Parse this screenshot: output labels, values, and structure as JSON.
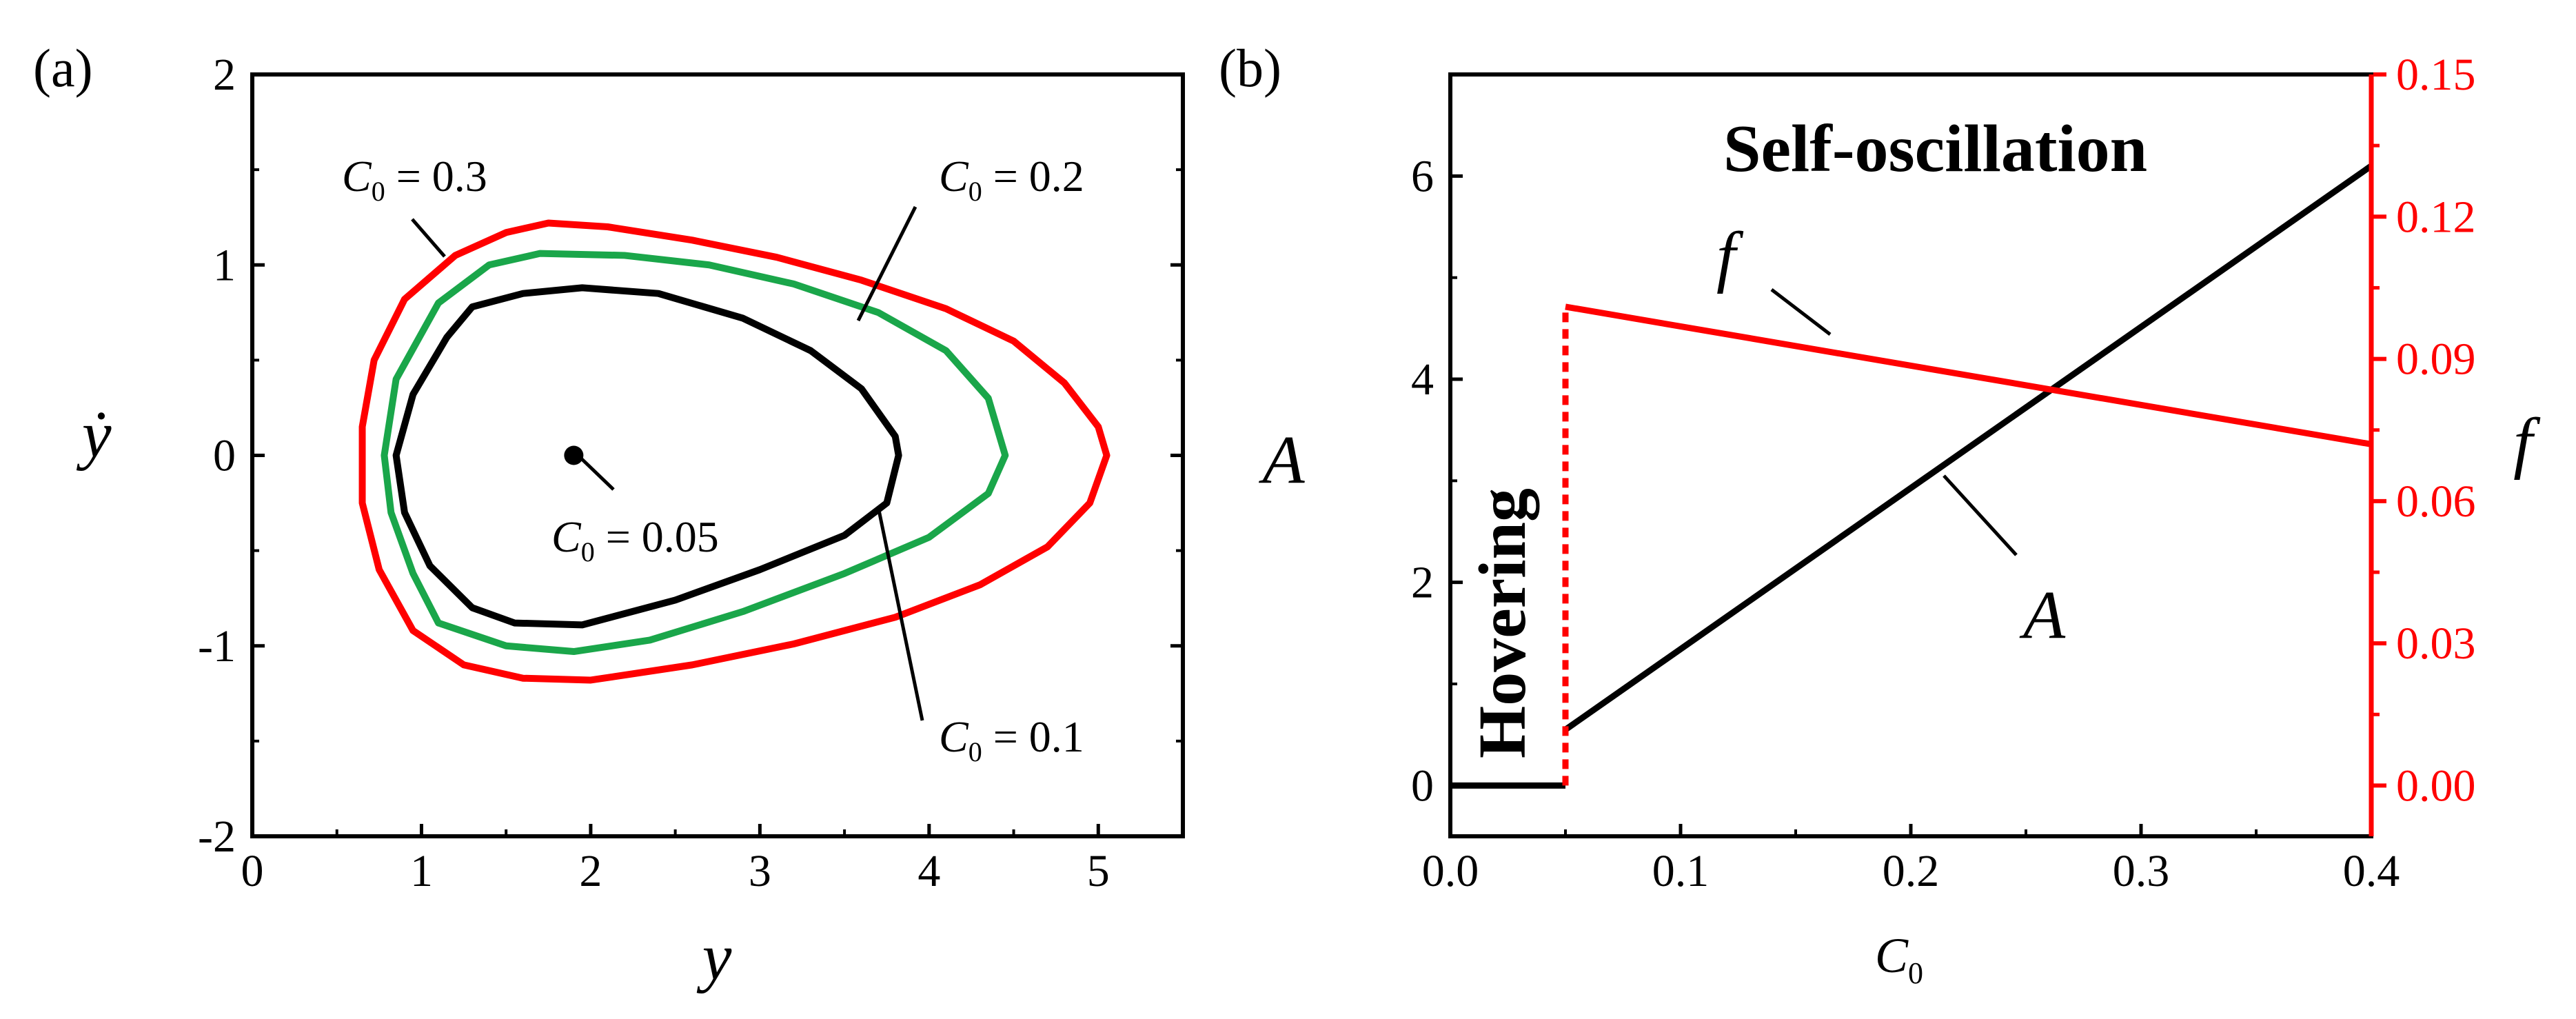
{
  "panel_a": {
    "label": "(a)"
  },
  "panel_b": {
    "label": "(b)"
  },
  "chart_data": [
    {
      "type": "line",
      "panel": "(a)",
      "xlabel": "y",
      "ylabel": "ẏ",
      "xlim": [
        0,
        5.5
      ],
      "ylim": [
        -2,
        2
      ],
      "x_ticks": [
        "0",
        "1",
        "2",
        "3",
        "4",
        "5"
      ],
      "y_ticks": [
        "-2",
        "-1",
        "0",
        "1",
        "2"
      ],
      "point": {
        "x": 1.9,
        "y": 0.0
      },
      "series": [
        {
          "label_C": "C",
          "label_sub": "0",
          "label_val": " = 0.3",
          "color": "#ff0000",
          "x": [
            1.75,
            2.1,
            2.6,
            3.1,
            3.6,
            4.1,
            4.5,
            4.8,
            5.0,
            5.05,
            4.95,
            4.7,
            4.3,
            3.8,
            3.2,
            2.6,
            2.0,
            1.6,
            1.25,
            0.95,
            0.75,
            0.65,
            0.65,
            0.72,
            0.9,
            1.2,
            1.5,
            1.75
          ],
          "y": [
            1.22,
            1.2,
            1.13,
            1.04,
            0.92,
            0.77,
            0.6,
            0.38,
            0.15,
            0.0,
            -0.25,
            -0.48,
            -0.68,
            -0.85,
            -0.99,
            -1.1,
            -1.18,
            -1.17,
            -1.1,
            -0.92,
            -0.6,
            -0.25,
            0.15,
            0.5,
            0.82,
            1.05,
            1.17,
            1.22
          ]
        },
        {
          "label_C": "C",
          "label_sub": "0",
          "label_val": " = 0.2",
          "color": "#1aa64a",
          "x": [
            1.7,
            2.2,
            2.7,
            3.2,
            3.7,
            4.1,
            4.35,
            4.45,
            4.35,
            4.0,
            3.5,
            2.9,
            2.35,
            1.9,
            1.5,
            1.1,
            0.95,
            0.82,
            0.78,
            0.85,
            1.1,
            1.4,
            1.7
          ],
          "y": [
            1.06,
            1.05,
            1.0,
            0.9,
            0.75,
            0.55,
            0.3,
            0.0,
            -0.2,
            -0.43,
            -0.62,
            -0.82,
            -0.97,
            -1.03,
            -1.0,
            -0.88,
            -0.62,
            -0.3,
            0.0,
            0.4,
            0.8,
            1.0,
            1.06
          ]
        },
        {
          "label_C": "C",
          "label_sub": "0",
          "label_val": " = 0.1",
          "color": "#000000",
          "x": [
            1.95,
            2.4,
            2.9,
            3.3,
            3.6,
            3.8,
            3.82,
            3.75,
            3.5,
            3.0,
            2.5,
            1.95,
            1.55,
            1.3,
            1.05,
            0.9,
            0.85,
            0.95,
            1.15,
            1.3,
            1.6,
            1.95
          ],
          "y": [
            0.88,
            0.85,
            0.72,
            0.55,
            0.35,
            0.1,
            0.0,
            -0.25,
            -0.42,
            -0.6,
            -0.76,
            -0.89,
            -0.88,
            -0.8,
            -0.58,
            -0.3,
            0.0,
            0.32,
            0.62,
            0.78,
            0.85,
            0.88
          ]
        }
      ],
      "point_label": {
        "C": "C",
        "sub": "0",
        "val": " = 0.05"
      }
    },
    {
      "type": "line",
      "panel": "(b)",
      "xlabel_C": "C",
      "xlabel_sub": "0",
      "ylabel_left": "A",
      "ylabel_right": "f",
      "xlim": [
        0,
        0.4
      ],
      "ylim_left": [
        -0.5,
        7
      ],
      "ylim_right": [
        -0.0107,
        0.15
      ],
      "x_ticks": [
        "0.0",
        "0.1",
        "0.2",
        "0.3",
        "0.4"
      ],
      "y_ticks_left": [
        "0",
        "2",
        "4",
        "6"
      ],
      "y_ticks_right": [
        "0.00",
        "0.03",
        "0.06",
        "0.09",
        "0.12",
        "0.15"
      ],
      "series": [
        {
          "name": "A",
          "axis": "left",
          "color": "#000000",
          "segments": [
            {
              "x": [
                0.0,
                0.05
              ],
              "y": [
                0.0,
                0.0
              ]
            },
            {
              "x": [
                0.05,
                0.4
              ],
              "y": [
                0.55,
                6.1
              ]
            }
          ]
        },
        {
          "name": "f",
          "axis": "right",
          "color": "#ff0000",
          "segments": [
            {
              "x": [
                0.05,
                0.05
              ],
              "y": [
                0.0,
                0.101
              ],
              "dashed": true
            },
            {
              "x": [
                0.05,
                0.4
              ],
              "y": [
                0.101,
                0.072
              ]
            }
          ]
        }
      ],
      "regions": {
        "hovering": "Hovering",
        "self_oscillation": "Self-oscillation"
      }
    }
  ]
}
